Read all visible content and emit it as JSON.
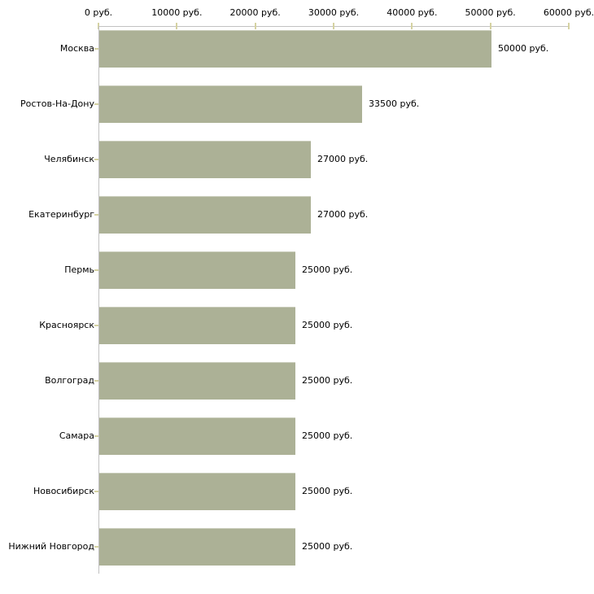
{
  "chart_data": {
    "type": "bar",
    "orientation": "horizontal",
    "unit": "руб.",
    "categories": [
      "Москва",
      "Ростов-На-Дону",
      "Челябинск",
      "Екатеринбург",
      "Пермь",
      "Красноярск",
      "Волгоград",
      "Самара",
      "Новосибирск",
      "Нижний Новгород"
    ],
    "values": [
      50000,
      33500,
      27000,
      27000,
      25000,
      25000,
      25000,
      25000,
      25000,
      25000
    ],
    "value_labels": [
      "50000 руб.",
      "33500 руб.",
      "27000 руб.",
      "27000 руб.",
      "25000 руб.",
      "25000 руб.",
      "25000 руб.",
      "25000 руб.",
      "25000 руб.",
      "25000 руб."
    ],
    "x_axis": {
      "position": "top",
      "range": [
        0,
        60000
      ],
      "ticks": [
        0,
        10000,
        20000,
        30000,
        40000,
        50000,
        60000
      ],
      "tick_labels": [
        "0 руб.",
        "10000 руб.",
        "20000 руб.",
        "30000 руб.",
        "40000 руб.",
        "50000 руб.",
        "60000 руб."
      ]
    },
    "grid": false,
    "legend": null,
    "colors": {
      "bar_fill": "#acb196",
      "bar_top_edge": "#c9ccba",
      "axis_line": "#c1c1c1",
      "tick_mark": "#d5d2a2",
      "label_text": "#000000",
      "background": "#ffffff"
    }
  }
}
